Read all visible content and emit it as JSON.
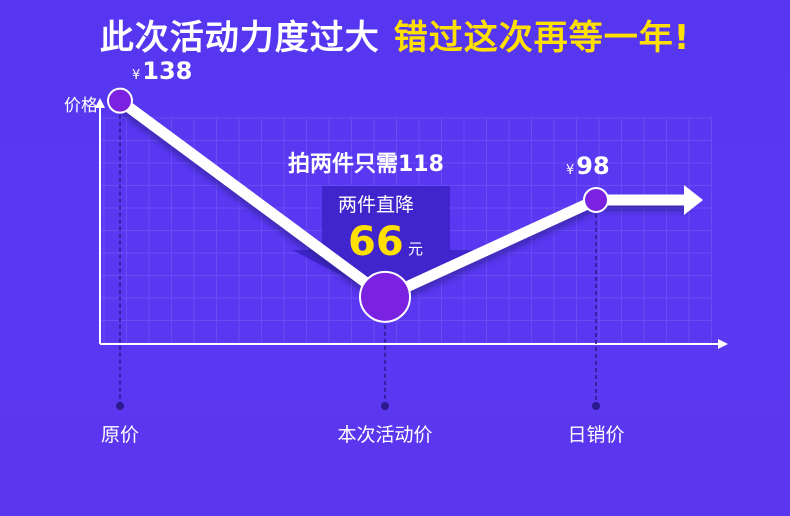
{
  "headline": {
    "main": "此次活动力度过大",
    "highlight": "错过这次再等一年!"
  },
  "colors": {
    "background": "#5636f0",
    "grid": "#6a4cf4",
    "line": "#ffffff",
    "point_fill": "#7a22e0",
    "highlight": "#ffe000",
    "dashed": "#2a1a8c"
  },
  "chart_data": {
    "type": "line",
    "ylabel": "价格",
    "xlabel": "",
    "categories": [
      "原价",
      "本次活动价",
      "日销价"
    ],
    "series": [
      {
        "values": [
          138,
          59,
          98
        ],
        "value_labels": [
          "138",
          "",
          "98"
        ]
      }
    ],
    "currency_symbol": "¥",
    "ylim": [
      40,
      160
    ],
    "grid": true,
    "annotation": {
      "title": "拍两件只需118",
      "subtitle": "两件直降",
      "amount": "66",
      "unit": "元",
      "icon": "down-arrow-icon"
    }
  }
}
